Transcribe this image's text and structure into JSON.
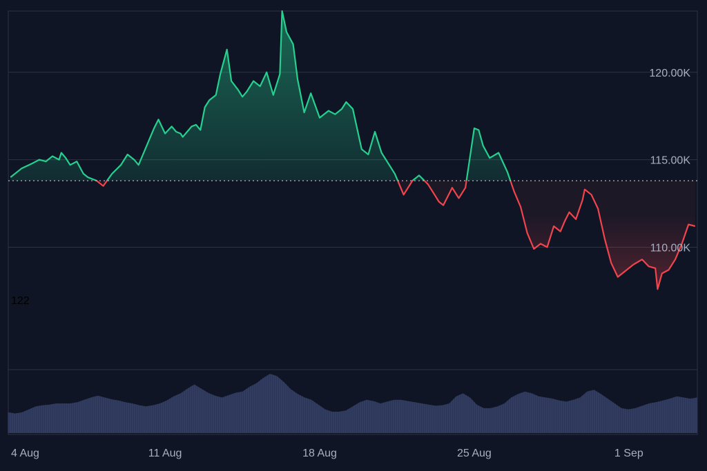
{
  "chart_data": {
    "type": "area",
    "title": "",
    "baseline": 113.8,
    "ylim": [
      103.0,
      123.5
    ],
    "y_ticks": [
      {
        "value": 110,
        "label": "110.00K"
      },
      {
        "value": 115,
        "label": "115.00K"
      },
      {
        "value": 120,
        "label": "120.00K"
      }
    ],
    "x_ticks": [
      {
        "day": 0,
        "label": "4 Aug"
      },
      {
        "day": 7,
        "label": "11 Aug"
      },
      {
        "day": 14,
        "label": "18 Aug"
      },
      {
        "day": 21,
        "label": "25 Aug"
      },
      {
        "day": 28,
        "label": "1 Sep"
      }
    ],
    "x_range_days": [
      -0.1,
      31.1
    ],
    "colors": {
      "up": "#26d08f",
      "down": "#f2444c",
      "volume": "#2b3556",
      "grid": "#2d3446",
      "baseline": "#c8cbd4"
    },
    "price_series": {
      "x_days": [
        0,
        0.5,
        1,
        1.3,
        1.6,
        1.9,
        2.2,
        2.3,
        2.5,
        2.7,
        3,
        3.3,
        3.5,
        3.9,
        4.2,
        4.6,
        5,
        5.3,
        5.6,
        5.8,
        6,
        6.3,
        6.5,
        6.7,
        7,
        7.3,
        7.5,
        7.7,
        7.8,
        8,
        8.2,
        8.4,
        8.6,
        8.8,
        9,
        9.3,
        9.5,
        9.8,
        10,
        10.3,
        10.5,
        10.7,
        11,
        11.3,
        11.6,
        11.9,
        12.2,
        12.5,
        12.8,
        13,
        13.3,
        13.6,
        14,
        14.4,
        14.7,
        15,
        15.2,
        15.5,
        15.9,
        16.2,
        16.5,
        16.8,
        17.1,
        17.4,
        17.6,
        17.8,
        18.2,
        18.5,
        18.9,
        19.2,
        19.4,
        19.6,
        20,
        20.3,
        20.6,
        21,
        21.2,
        21.4,
        21.7,
        22.1,
        22.5,
        22.8,
        23.1,
        23.4,
        23.7,
        24,
        24.3,
        24.6,
        24.9,
        25.1,
        25.3,
        25.6,
        25.9,
        26,
        26.3,
        26.6,
        26.9,
        27.2,
        27.5,
        27.8,
        28.2,
        28.6,
        28.9,
        29.2,
        29.5,
        29.8,
        30.1,
        30.4,
        30.7,
        31
      ],
      "y": [
        114,
        114.5,
        114.8,
        115,
        114.9,
        115.2,
        115.0,
        115.4,
        115.1,
        114.7,
        114.9,
        114.2,
        114.0,
        113.8,
        113.5,
        114.2,
        114.7,
        115.3,
        115.0,
        114.7,
        115.3,
        116.2,
        116.8,
        117.3,
        116.5,
        116.9,
        116.6,
        116.5,
        116.3,
        116.6,
        116.9,
        117.0,
        116.7,
        118.0,
        118.4,
        118.7,
        119.9,
        121.3,
        119.5,
        119.0,
        118.6,
        118.9,
        119.5,
        119.2,
        120.0,
        118.7,
        119.9,
        122.3,
        121.6,
        119.6,
        117.7,
        118.8,
        117.4,
        117.8,
        117.6,
        117.9,
        118.3,
        117.9,
        115.6,
        115.3,
        116.6,
        115.4,
        114.8,
        114.2,
        113.6,
        113.0,
        113.8,
        114.1,
        113.6,
        113.0,
        112.6,
        112.4,
        113.4,
        112.8,
        113.4,
        116.8,
        116.7,
        115.8,
        115.1,
        115.4,
        114.3,
        113.2,
        112.3,
        110.8,
        109.9,
        110.2,
        110.0,
        111.2,
        110.9,
        111.5,
        112.0,
        111.6,
        112.7,
        113.3,
        113.0,
        112.2,
        110.5,
        109.1,
        108.3,
        108.6,
        109.0,
        109.3,
        108.9,
        108.8,
        108.5,
        108.7,
        109.3,
        110.2,
        111.3,
        111.2
      ],
      "min_point": {
        "day": 29.3,
        "value": 107.6
      },
      "max_point": {
        "day": 12.3,
        "value": 123.5
      }
    },
    "volume_series": {
      "relative_level": [
        0.35,
        0.33,
        0.35,
        0.4,
        0.45,
        0.47,
        0.48,
        0.5,
        0.5,
        0.5,
        0.52,
        0.56,
        0.6,
        0.63,
        0.6,
        0.57,
        0.55,
        0.52,
        0.5,
        0.47,
        0.45,
        0.47,
        0.5,
        0.55,
        0.62,
        0.67,
        0.75,
        0.82,
        0.75,
        0.68,
        0.63,
        0.6,
        0.64,
        0.68,
        0.7,
        0.78,
        0.84,
        0.93,
        1.0,
        0.96,
        0.86,
        0.74,
        0.66,
        0.6,
        0.56,
        0.48,
        0.4,
        0.36,
        0.36,
        0.38,
        0.45,
        0.52,
        0.56,
        0.54,
        0.5,
        0.53,
        0.56,
        0.56,
        0.54,
        0.52,
        0.5,
        0.48,
        0.46,
        0.47,
        0.5,
        0.62,
        0.67,
        0.6,
        0.48,
        0.42,
        0.42,
        0.45,
        0.5,
        0.6,
        0.66,
        0.7,
        0.67,
        0.62,
        0.6,
        0.58,
        0.55,
        0.53,
        0.56,
        0.6,
        0.7,
        0.73,
        0.66,
        0.58,
        0.5,
        0.42,
        0.4,
        0.42,
        0.46,
        0.5,
        0.52,
        0.55,
        0.58,
        0.62,
        0.6,
        0.58,
        0.6
      ]
    }
  },
  "labels": {
    "stray_value": "122"
  }
}
